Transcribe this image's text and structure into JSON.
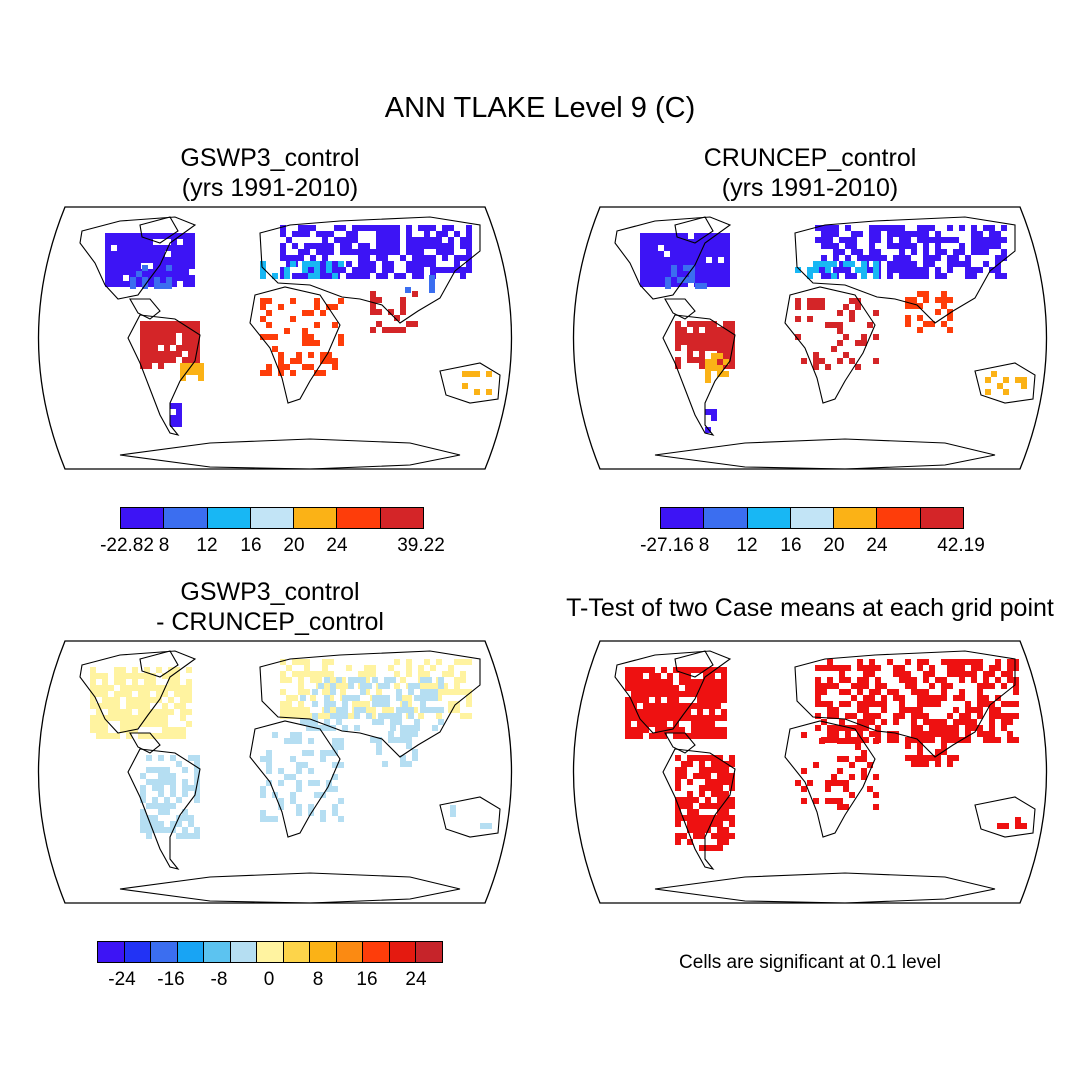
{
  "title": "ANN TLAKE Level 9 (C)",
  "panels": [
    {
      "id": "gswp3",
      "title_line1": "GSWP3_control",
      "title_line2": "(yrs 1991-2010)"
    },
    {
      "id": "cruncep",
      "title_line1": "CRUNCEP_control",
      "title_line2": "(yrs 1991-2010)"
    },
    {
      "id": "diff",
      "title_line1": "GSWP3_control",
      "title_line2": "- CRUNCEP_control"
    },
    {
      "id": "ttest",
      "title_line1": "T-Test of two Case means at each grid point",
      "title_line2": ""
    }
  ],
  "legends": {
    "gswp3": {
      "colors": [
        "#3d14f5",
        "#3b6ef0",
        "#18b7f4",
        "#c2e4f6",
        "#fbb216",
        "#fe3d0a",
        "#d42528"
      ],
      "labels": [
        "-22.82",
        "8",
        "12",
        "16",
        "20",
        "24",
        "39.22"
      ]
    },
    "cruncep": {
      "colors": [
        "#3d14f5",
        "#3b6ef0",
        "#18b7f4",
        "#c2e4f6",
        "#fbb216",
        "#fe3d0a",
        "#d42528"
      ],
      "labels": [
        "-27.16",
        "8",
        "12",
        "16",
        "20",
        "24",
        "42.19"
      ]
    },
    "diff": {
      "colors": [
        "#3d14f5",
        "#2233f5",
        "#3b6ef0",
        "#18a4f4",
        "#5cc3f0",
        "#b5def2",
        "#fff3a0",
        "#fdd44a",
        "#fbb216",
        "#fb8a12",
        "#fe3d0a",
        "#e41a10",
        "#c6242a"
      ],
      "labels": [
        "-24",
        "-16",
        "-8",
        "0",
        "8",
        "16",
        "24"
      ]
    }
  },
  "note": "Cells are significant at 0.1 level"
}
